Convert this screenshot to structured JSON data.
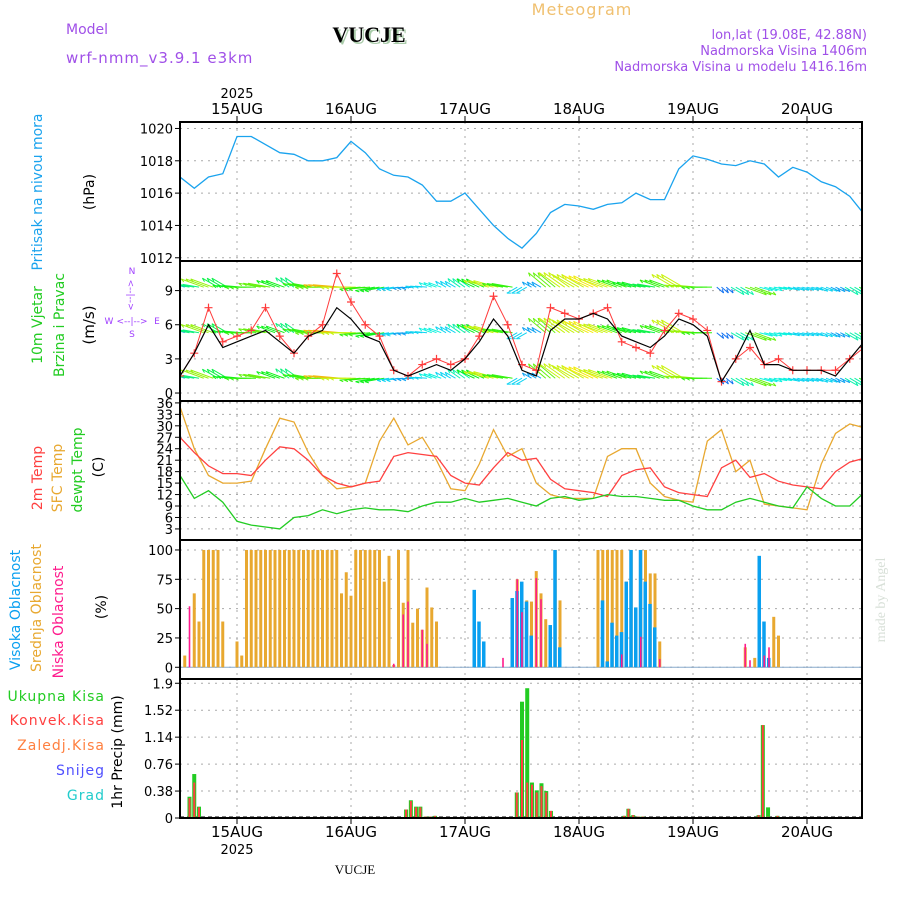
{
  "header": {
    "meteogram": "Meteogram",
    "model_label": "Model",
    "station": "VUCJE",
    "model_name": "wrf-nmm_v3.9.1 e3km",
    "lonlat": "lon,lat (19.08E, 42.88N)",
    "elevation": "Nadmorska Visina 1406m",
    "model_elevation": "Nadmorska Visina u modelu 1416.16m",
    "year_top": "2025",
    "year_bottom": "2025",
    "footer_station": "VUCJE",
    "credit": "made by Angel"
  },
  "colors": {
    "pressure": "#1aa3ee",
    "wind_speed": "#000000",
    "gust": "#ff3b3b",
    "temp2m": "#ff4040",
    "sfc": "#e8a830",
    "dew": "#22cc22",
    "cloud_high": "#0aa0f0",
    "cloud_mid": "#e8a830",
    "cloud_low": "#ff1a8c",
    "precip_total": "#22cc22",
    "precip_conv": "#ff4040",
    "compass": "#a040ff"
  },
  "days": [
    "15AUG",
    "16AUG",
    "17AUG",
    "18AUG",
    "19AUG",
    "20AUG"
  ],
  "labels": {
    "pressure": [
      "Pritisak na nivou mora",
      "(hPa)"
    ],
    "wind": [
      "10m Vjetar",
      "Brzina i Pravac",
      "(m/s)"
    ],
    "compass": {
      "n": "N",
      "s": "S",
      "w": "W",
      "e": "E",
      "h": "<--|-->",
      "v": "<--|-->"
    },
    "temp": [
      "2m Temp",
      "SFC Temp",
      "dewpt Temp",
      "(C)"
    ],
    "cloud": [
      "Visoka Oblacnost",
      "Srednja Oblacnost",
      "Niska Oblacnost",
      "(%)"
    ],
    "precip_legend": [
      "Ukupna Kisa",
      "Konvek.Kisa",
      "Zaledj.Kisa",
      "Snijeg",
      "Grad"
    ],
    "precip_axis": "1hr Precip (mm)"
  },
  "chart_data": [
    {
      "type": "line",
      "name": "pressure",
      "x_unit": "hours since 15AUG2025 00UTC",
      "x_start": -12,
      "x_step": 3,
      "ylim": [
        1011.8,
        1020.4
      ],
      "yticks": [
        1012,
        1014,
        1016,
        1018,
        1020
      ],
      "ylabel": "Pritisak na nivou mora (hPa)",
      "values": [
        1017,
        1016.3,
        1017,
        1017.2,
        1019.5,
        1019.5,
        1019,
        1018.5,
        1018.4,
        1018,
        1018,
        1018.2,
        1019.2,
        1018.5,
        1017.5,
        1017.1,
        1017,
        1016.5,
        1015.5,
        1015.5,
        1016,
        1015,
        1014,
        1013.2,
        1012.6,
        1013.5,
        1014.8,
        1015.3,
        1015.2,
        1015.0,
        1015.3,
        1015.4,
        1016,
        1015.6,
        1015.6,
        1017.5,
        1018.3,
        1018.1,
        1017.8,
        1017.7,
        1018.0,
        1017.8,
        1017.0,
        1017.6,
        1017.3,
        1016.7,
        1016.4,
        1015.8,
        1014.7
      ]
    },
    {
      "type": "line",
      "name": "wind",
      "x_start": -12,
      "x_step": 3,
      "ylim": [
        -0.7,
        11.6
      ],
      "yticks": [
        0,
        3,
        6,
        9
      ],
      "ylabel": "10m Vjetar Brzina i Pravac (m/s)",
      "series": [
        {
          "name": "speed",
          "values": [
            1.5,
            3.5,
            6,
            4,
            4.5,
            5,
            5.5,
            4.5,
            3.5,
            5,
            5.5,
            7.5,
            6.5,
            5,
            4.5,
            2,
            1.5,
            2,
            2.5,
            2,
            3,
            4.5,
            6.5,
            5,
            2,
            1.5,
            5.5,
            6.5,
            6.5,
            7,
            6.5,
            5,
            4.5,
            4,
            5,
            6.5,
            6,
            5,
            1,
            3,
            5.5,
            2.5,
            2.5,
            2,
            2,
            2,
            1.5,
            3,
            4.5
          ]
        },
        {
          "name": "gust",
          "values": [
            1.5,
            3.5,
            7.5,
            4.5,
            5,
            5.5,
            7.5,
            5,
            3.5,
            5,
            6,
            10.5,
            8,
            6,
            5,
            2,
            1.5,
            2.5,
            3,
            2.5,
            3,
            5,
            8.5,
            6,
            2.5,
            2,
            7.5,
            7,
            6.5,
            7,
            7.5,
            4.5,
            4,
            3.5,
            5.5,
            7,
            6.5,
            5.5,
            1,
            3,
            4,
            2.5,
            3,
            2,
            2,
            2,
            2,
            3,
            4
          ]
        }
      ],
      "arrow_levels": [
        1.3,
        5.3,
        9.3
      ],
      "direction_deg": [
        200,
        190,
        200,
        210,
        185,
        180,
        190,
        200,
        215,
        190,
        180,
        185,
        180,
        175,
        170,
        170,
        175,
        185,
        200,
        210,
        215,
        205,
        195,
        190,
        150,
        210,
        220,
        215,
        210,
        205,
        200,
        200,
        195,
        190,
        200,
        210,
        185,
        180,
        40,
        30,
        20,
        15,
        10,
        15,
        15,
        20,
        25,
        30,
        30
      ]
    },
    {
      "type": "line",
      "name": "temperature",
      "x_start": -12,
      "x_step": 3,
      "ylim": [
        0.1,
        36.5
      ],
      "yticks": [
        3,
        6,
        9,
        12,
        15,
        18,
        21,
        24,
        27,
        30,
        33,
        36
      ],
      "ylabel": "(C)",
      "series": [
        {
          "name": "2m Temp",
          "values": [
            27,
            23,
            19.5,
            17.5,
            17.5,
            17,
            21,
            24.5,
            24,
            21,
            17,
            15,
            14,
            15,
            15.5,
            22,
            23,
            22.5,
            22,
            17,
            15,
            14.5,
            19,
            23,
            21,
            21.5,
            16,
            13.5,
            13,
            12.5,
            11.5,
            17,
            18.5,
            19,
            14,
            12.5,
            12,
            11.5,
            19,
            21,
            16.5,
            17.5,
            15.5,
            14.5,
            14,
            13.5,
            18,
            20.5,
            21.5
          ]
        },
        {
          "name": "SFC Temp",
          "values": [
            35,
            24,
            17,
            15,
            15,
            15.5,
            24,
            32,
            31,
            23,
            17,
            13.5,
            14,
            15,
            26,
            32,
            25,
            27,
            21,
            13.5,
            13,
            20,
            29,
            22,
            24,
            15,
            12,
            11,
            11,
            11,
            22,
            24,
            24,
            15,
            11.5,
            10.5,
            10,
            26,
            29,
            18,
            21,
            9.5,
            9,
            8.5,
            8,
            20,
            28,
            30.5,
            29.5
          ]
        },
        {
          "name": "dewpt Temp",
          "values": [
            17,
            11,
            13,
            10,
            5,
            4,
            3.5,
            3,
            6,
            6.5,
            8,
            7,
            8,
            8.5,
            8,
            8,
            7.5,
            9,
            10,
            10,
            11,
            10,
            10.5,
            11,
            10,
            9,
            11,
            11.5,
            10.5,
            11,
            12,
            11.5,
            11.5,
            11,
            10.5,
            10.5,
            9,
            8,
            8,
            10,
            11,
            10,
            9,
            8.5,
            14,
            11,
            9,
            9,
            12.5
          ]
        }
      ]
    },
    {
      "type": "bar",
      "name": "cloud",
      "ylim": [
        -10,
        108.5
      ],
      "yticks": [
        0,
        25,
        50,
        75,
        100
      ],
      "ylabel": "(%)",
      "columns": [
        "hour",
        "high",
        "mid",
        "low"
      ],
      "rows": [
        [
          -11,
          0,
          10,
          0
        ],
        [
          -10,
          0,
          0,
          52
        ],
        [
          -9,
          0,
          63,
          0
        ],
        [
          -8,
          0,
          39,
          0
        ],
        [
          -7,
          0,
          100,
          0
        ],
        [
          -6,
          0,
          100,
          0
        ],
        [
          -5,
          0,
          100,
          0
        ],
        [
          -4,
          0,
          100,
          0
        ],
        [
          -3,
          0,
          39,
          0
        ],
        [
          0,
          0,
          22,
          0
        ],
        [
          1,
          0,
          10,
          0
        ],
        [
          2,
          0,
          100,
          0
        ],
        [
          3,
          0,
          100,
          0
        ],
        [
          4,
          0,
          100,
          0
        ],
        [
          5,
          0,
          100,
          0
        ],
        [
          6,
          0,
          100,
          0
        ],
        [
          7,
          0,
          100,
          0
        ],
        [
          8,
          0,
          100,
          0
        ],
        [
          9,
          0,
          100,
          0
        ],
        [
          10,
          0,
          100,
          0
        ],
        [
          11,
          0,
          100,
          0
        ],
        [
          12,
          0,
          100,
          0
        ],
        [
          13,
          0,
          100,
          0
        ],
        [
          14,
          0,
          100,
          0
        ],
        [
          15,
          0,
          100,
          0
        ],
        [
          16,
          0,
          100,
          0
        ],
        [
          17,
          0,
          100,
          0
        ],
        [
          18,
          0,
          100,
          0
        ],
        [
          19,
          0,
          100,
          0
        ],
        [
          20,
          0,
          100,
          0
        ],
        [
          21,
          0,
          100,
          0
        ],
        [
          22,
          0,
          63,
          0
        ],
        [
          23,
          0,
          81,
          0
        ],
        [
          24,
          0,
          61,
          0
        ],
        [
          25,
          0,
          100,
          0
        ],
        [
          26,
          0,
          100,
          0
        ],
        [
          27,
          0,
          100,
          0
        ],
        [
          28,
          0,
          100,
          0
        ],
        [
          29,
          0,
          100,
          0
        ],
        [
          30,
          0,
          100,
          0
        ],
        [
          31,
          0,
          73,
          0
        ],
        [
          32,
          0,
          95,
          0
        ],
        [
          33,
          0,
          2,
          3
        ],
        [
          34,
          0,
          100,
          0
        ],
        [
          35,
          0,
          55,
          45
        ],
        [
          36,
          0,
          100,
          56
        ],
        [
          37,
          0,
          38,
          0
        ],
        [
          38,
          0,
          50,
          0
        ],
        [
          39,
          0,
          32,
          32
        ],
        [
          40,
          0,
          68,
          20
        ],
        [
          41,
          0,
          51,
          0
        ],
        [
          42,
          0,
          39,
          0
        ],
        [
          50,
          66,
          0,
          0
        ],
        [
          51,
          39,
          0,
          0
        ],
        [
          52,
          22,
          0,
          0
        ],
        [
          56,
          0,
          0,
          8
        ],
        [
          58,
          59,
          59,
          0
        ],
        [
          59,
          65,
          75,
          75
        ],
        [
          60,
          73,
          0,
          47
        ],
        [
          61,
          56,
          57,
          0
        ],
        [
          62,
          27,
          56,
          0
        ],
        [
          63,
          0,
          82,
          76
        ],
        [
          64,
          0,
          63,
          58
        ],
        [
          65,
          0,
          41,
          0
        ],
        [
          66,
          36,
          27,
          0
        ],
        [
          67,
          100,
          100,
          0
        ],
        [
          68,
          17,
          57,
          0
        ],
        [
          76,
          0,
          100,
          0
        ],
        [
          77,
          57,
          100,
          0
        ],
        [
          78,
          5,
          100,
          0
        ],
        [
          79,
          38,
          100,
          0
        ],
        [
          80,
          27,
          100,
          0
        ],
        [
          81,
          30,
          100,
          11
        ],
        [
          82,
          73,
          73,
          0
        ],
        [
          83,
          100,
          100,
          0
        ],
        [
          84,
          51,
          51,
          0
        ],
        [
          85,
          100,
          100,
          26
        ],
        [
          86,
          73,
          100,
          0
        ],
        [
          87,
          54,
          80,
          0
        ],
        [
          88,
          34,
          80,
          0
        ],
        [
          89,
          0,
          22,
          7
        ],
        [
          107,
          0,
          17,
          20
        ],
        [
          108,
          0,
          0,
          6
        ],
        [
          109,
          0,
          8,
          0
        ],
        [
          110,
          95,
          90,
          0
        ],
        [
          111,
          39,
          0,
          10
        ],
        [
          112,
          8,
          0,
          17
        ],
        [
          113,
          0,
          43,
          0
        ],
        [
          114,
          0,
          27,
          0
        ]
      ]
    },
    {
      "type": "bar",
      "name": "precipitation",
      "ylim": [
        0,
        1.96
      ],
      "yticks": [
        0,
        0.38,
        0.76,
        1.14,
        1.52,
        1.9
      ],
      "ylabel": "1hr Precip (mm)",
      "columns": [
        "hour",
        "total",
        "convective"
      ],
      "rows": [
        [
          -11,
          0.01,
          0.01
        ],
        [
          -10,
          0.3,
          0.28
        ],
        [
          -9,
          0.62,
          0.5
        ],
        [
          -8,
          0.16,
          0.15
        ],
        [
          35.6,
          0.12,
          0.12
        ],
        [
          36.6,
          0.25,
          0.24
        ],
        [
          37.7,
          0.16,
          0.15
        ],
        [
          38.6,
          0.16,
          0.15
        ],
        [
          39.7,
          0.02,
          0.02
        ],
        [
          40.7,
          0.02,
          0.02
        ],
        [
          41.7,
          0.03,
          0.03
        ],
        [
          58.9,
          0.36,
          0.36
        ],
        [
          60,
          1.64,
          1.1
        ],
        [
          61.1,
          1.83,
          0.5
        ],
        [
          62.1,
          0.5,
          0.47
        ],
        [
          63.1,
          0.39,
          0.36
        ],
        [
          64.1,
          0.49,
          0.45
        ],
        [
          65.1,
          0.38,
          0.36
        ],
        [
          66.1,
          0.1,
          0.1
        ],
        [
          81.5,
          0.03,
          0.03
        ],
        [
          82.4,
          0.13,
          0.13
        ],
        [
          83.4,
          0.04,
          0.04
        ],
        [
          84.5,
          0.02,
          0.02
        ],
        [
          85.4,
          0.02,
          0.02
        ],
        [
          107.8,
          0.01,
          0.01
        ],
        [
          109.8,
          0.04,
          0.04
        ],
        [
          110.7,
          1.31,
          1.31
        ],
        [
          111.8,
          0.15,
          0.02
        ],
        [
          113.8,
          0.03,
          0.03
        ]
      ]
    }
  ]
}
